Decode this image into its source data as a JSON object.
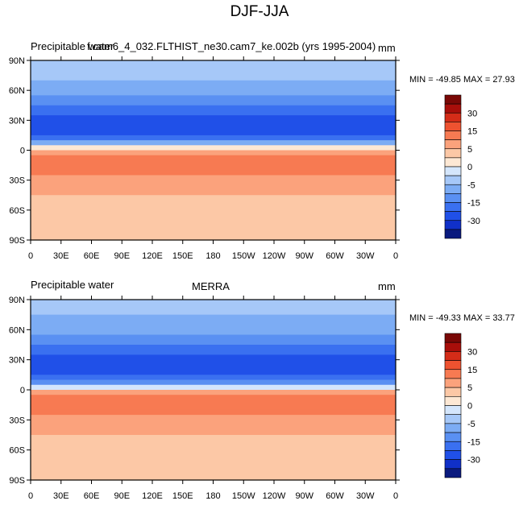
{
  "figure": {
    "title": "DJF-JJA"
  },
  "colorbar": {
    "colors": [
      "#0a1a7e",
      "#1030c8",
      "#2050e8",
      "#3a70f0",
      "#5a90f2",
      "#7cacf4",
      "#a6c8f8",
      "#d4e6fc",
      "#fde8d4",
      "#fcc8a6",
      "#fba27c",
      "#f77a52",
      "#ee5230",
      "#d42c18",
      "#a80e0a",
      "#7a0806"
    ],
    "tick_labels": [
      "30",
      "15",
      "5",
      "0",
      "-5",
      "-15",
      "-30"
    ]
  },
  "chart_data": [
    {
      "type": "heatmap",
      "title_left": "Precipitable water",
      "title_center": "f.cam6_4_032.FLTHIST_ne30.cam7_ke.002b (yrs 1995-2004)",
      "title_right": "mm",
      "stats": "MIN = -49.85  MAX =  27.93",
      "min": -49.85,
      "max": 27.93,
      "x_ticks": [
        "0",
        "30E",
        "60E",
        "90E",
        "120E",
        "150E",
        "180",
        "150W",
        "120W",
        "90W",
        "60W",
        "30W",
        "0"
      ],
      "y_ticks": [
        "90N",
        "60N",
        "30N",
        "0",
        "30S",
        "60S",
        "90S"
      ],
      "xlim": [
        0,
        360
      ],
      "ylim": [
        -90,
        90
      ],
      "zonal_profile": {
        "lat": [
          -90,
          -75,
          -60,
          -45,
          -30,
          -20,
          -10,
          0,
          10,
          20,
          30,
          45,
          60,
          75,
          90
        ],
        "value": [
          2,
          2,
          3,
          5,
          8,
          11,
          12,
          5,
          -14,
          -24,
          -22,
          -14,
          -8,
          -4,
          -2
        ]
      }
    },
    {
      "type": "heatmap",
      "title_left": "Precipitable water",
      "title_center": "MERRA",
      "title_right": "mm",
      "stats": "MIN = -49.33  MAX =  33.77",
      "min": -49.33,
      "max": 33.77,
      "x_ticks": [
        "0",
        "30E",
        "60E",
        "90E",
        "120E",
        "150E",
        "180",
        "150W",
        "120W",
        "90W",
        "60W",
        "30W",
        "0"
      ],
      "y_ticks": [
        "90N",
        "60N",
        "30N",
        "0",
        "30S",
        "60S",
        "90S"
      ],
      "xlim": [
        0,
        360
      ],
      "ylim": [
        -90,
        90
      ],
      "zonal_profile": {
        "lat": [
          -90,
          -75,
          -60,
          -45,
          -30,
          -20,
          -10,
          0,
          10,
          20,
          30,
          45,
          60,
          75,
          90
        ],
        "value": [
          2,
          2,
          3,
          5,
          9,
          12,
          12,
          4,
          -15,
          -25,
          -22,
          -15,
          -9,
          -5,
          -2
        ]
      }
    }
  ]
}
